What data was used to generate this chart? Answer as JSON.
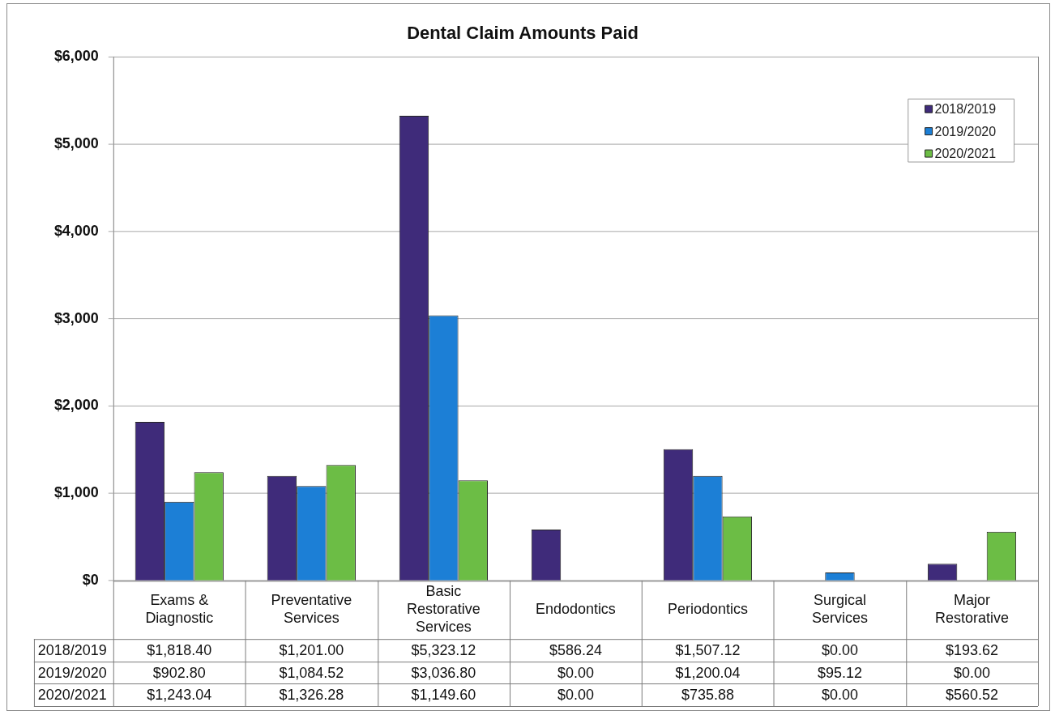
{
  "chart_data": {
    "type": "bar",
    "title": "Dental Claim Amounts Paid",
    "categories": [
      "Exams & Diagnostic",
      "Preventative Services",
      "Basic Restorative Services",
      "Endodontics",
      "Periodontics",
      "Surgical Services",
      "Major Restorative"
    ],
    "series": [
      {
        "name": "2018/2019",
        "color": "#3f2b7a",
        "values": [
          1818.4,
          1201.0,
          5323.12,
          586.24,
          1507.12,
          0.0,
          193.62
        ],
        "value_labels": [
          "$1,818.40",
          "$1,201.00",
          "$5,323.12",
          "$586.24",
          "$1,507.12",
          "$0.00",
          "$193.62"
        ]
      },
      {
        "name": "2019/2020",
        "color": "#1c7fd6",
        "values": [
          902.8,
          1084.52,
          3036.8,
          0.0,
          1200.04,
          95.12,
          0.0
        ],
        "value_labels": [
          "$902.80",
          "$1,084.52",
          "$3,036.80",
          "$0.00",
          "$1,200.04",
          "$95.12",
          "$0.00"
        ]
      },
      {
        "name": "2020/2021",
        "color": "#6cbd45",
        "values": [
          1243.04,
          1326.28,
          1149.6,
          0.0,
          735.88,
          0.0,
          560.52
        ],
        "value_labels": [
          "$1,243.04",
          "$1,326.28",
          "$1,149.60",
          "$0.00",
          "$735.88",
          "$0.00",
          "$560.52"
        ]
      }
    ],
    "ylim": [
      0,
      6000
    ],
    "yticks": [
      {
        "value": 0,
        "label": "$0"
      },
      {
        "value": 1000,
        "label": "$1,000"
      },
      {
        "value": 2000,
        "label": "$2,000"
      },
      {
        "value": 3000,
        "label": "$3,000"
      },
      {
        "value": 4000,
        "label": "$4,000"
      },
      {
        "value": 5000,
        "label": "$5,000"
      },
      {
        "value": 6000,
        "label": "$6,000"
      }
    ],
    "grid": "y",
    "legend": "top right"
  }
}
